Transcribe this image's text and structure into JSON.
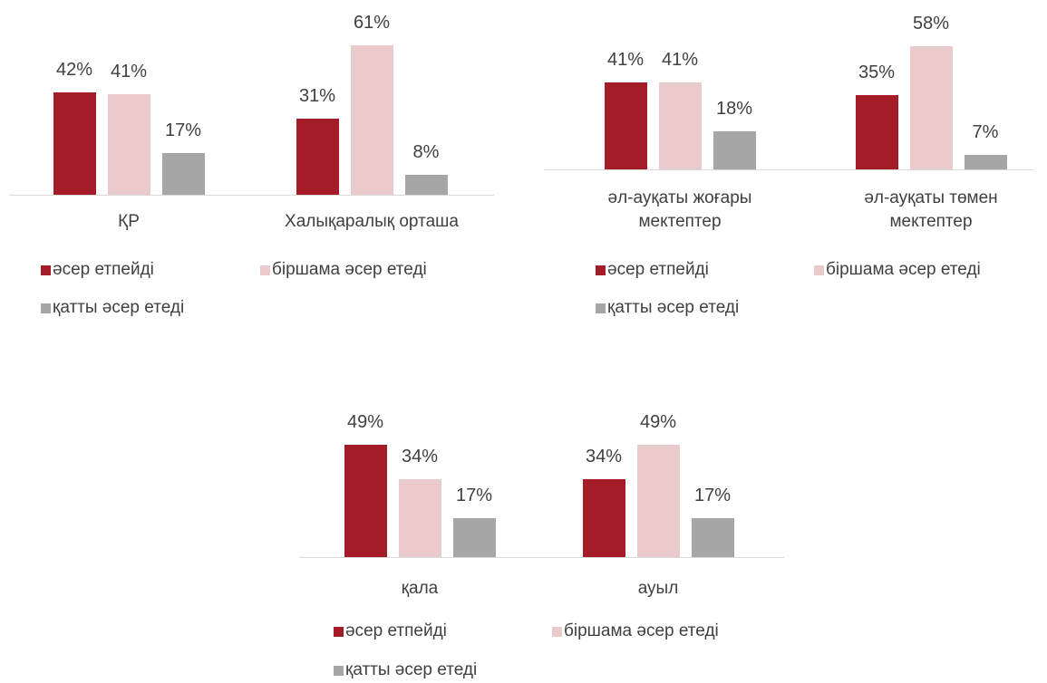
{
  "chart_data": [
    {
      "type": "bar",
      "categories": [
        "ҚР",
        "Халықаралық орташа"
      ],
      "series": [
        {
          "name": "әсер етпейді",
          "color": "#a31c28",
          "values": [
            42,
            31
          ],
          "value_labels": [
            "42%",
            "31%"
          ]
        },
        {
          "name": "біршама әсер етеді",
          "color": "#ebcacc",
          "values": [
            41,
            61
          ],
          "value_labels": [
            "41%",
            "61%"
          ]
        },
        {
          "name": "қатты әсер етеді",
          "color": "#a6a6a6",
          "values": [
            17,
            8
          ],
          "value_labels": [
            "17%",
            "8%"
          ]
        }
      ]
    },
    {
      "type": "bar",
      "categories": [
        "әл-ауқаты жоғары мектептер",
        "әл-ауқаты төмен мектептер"
      ],
      "series": [
        {
          "name": "әсер етпейді",
          "color": "#a31c28",
          "values": [
            41,
            35
          ],
          "value_labels": [
            "41%",
            "35%"
          ]
        },
        {
          "name": "біршама әсер етеді",
          "color": "#ebcacc",
          "values": [
            41,
            58
          ],
          "value_labels": [
            "41%",
            "58%"
          ]
        },
        {
          "name": "қатты әсер етеді",
          "color": "#a6a6a6",
          "values": [
            18,
            7
          ],
          "value_labels": [
            "18%",
            "7%"
          ]
        }
      ]
    },
    {
      "type": "bar",
      "categories": [
        "қала",
        "ауыл"
      ],
      "series": [
        {
          "name": "әсер етпейді",
          "color": "#a31c28",
          "values": [
            49,
            34
          ],
          "value_labels": [
            "49%",
            "34%"
          ]
        },
        {
          "name": "біршама әсер етеді",
          "color": "#ebcacc",
          "values": [
            34,
            49
          ],
          "value_labels": [
            "34%",
            "49%"
          ]
        },
        {
          "name": "қатты әсер етеді",
          "color": "#a6a6a6",
          "values": [
            17,
            17
          ],
          "value_labels": [
            "17%",
            "17%"
          ]
        }
      ]
    }
  ]
}
